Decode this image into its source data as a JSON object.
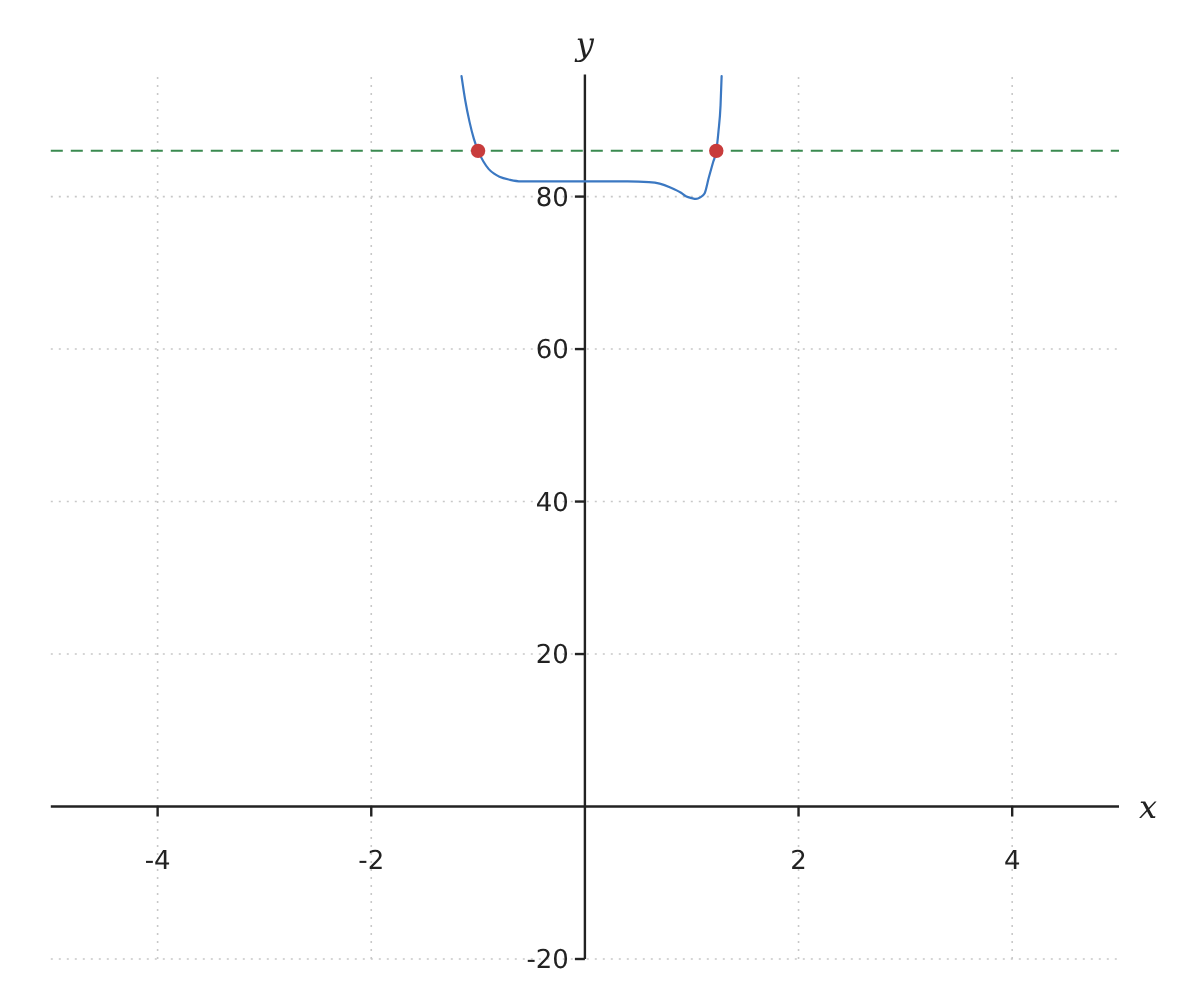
{
  "chart_data": {
    "type": "line",
    "xlabel": "x",
    "ylabel": "y",
    "xlim": [
      -5,
      5
    ],
    "ylim": [
      -20,
      96
    ],
    "xticks": [
      -4,
      -2,
      2,
      4
    ],
    "yticks": [
      -20,
      20,
      40,
      60,
      80
    ],
    "grid": true,
    "series": [
      {
        "color": "#3b78c2",
        "x": [
          -1.155,
          -1.12,
          -1.08,
          -1.04,
          -1,
          -0.95,
          -0.9,
          -0.85,
          -0.8,
          -0.7,
          -0.6,
          -0.4,
          -0.2,
          0,
          0.2,
          0.4,
          0.6,
          0.7,
          0.8,
          0.9,
          0.95,
          1,
          1.04,
          1.08,
          1.12,
          1.16,
          1.2,
          1.23,
          1.25,
          1.27,
          1.28
        ],
        "values": [
          95.8,
          92.6,
          89.8,
          87.6,
          86,
          84.6,
          83.6,
          83,
          82.6,
          82.2,
          82,
          82,
          82,
          82,
          82,
          82,
          81.9,
          81.7,
          81.2,
          80.5,
          80,
          79.8,
          79.7,
          79.9,
          80.4,
          82.5,
          84.5,
          86,
          88.5,
          92,
          95.8
        ]
      },
      {
        "type": "scatter",
        "color": "#c83c3c",
        "marker": "circle",
        "x": [
          -1,
          1.23
        ],
        "values": [
          86,
          86
        ]
      }
    ],
    "ref_lines": [
      {
        "axis": "y",
        "value": 86,
        "color": "#3a8a50",
        "line_style": "dashed"
      }
    ]
  }
}
